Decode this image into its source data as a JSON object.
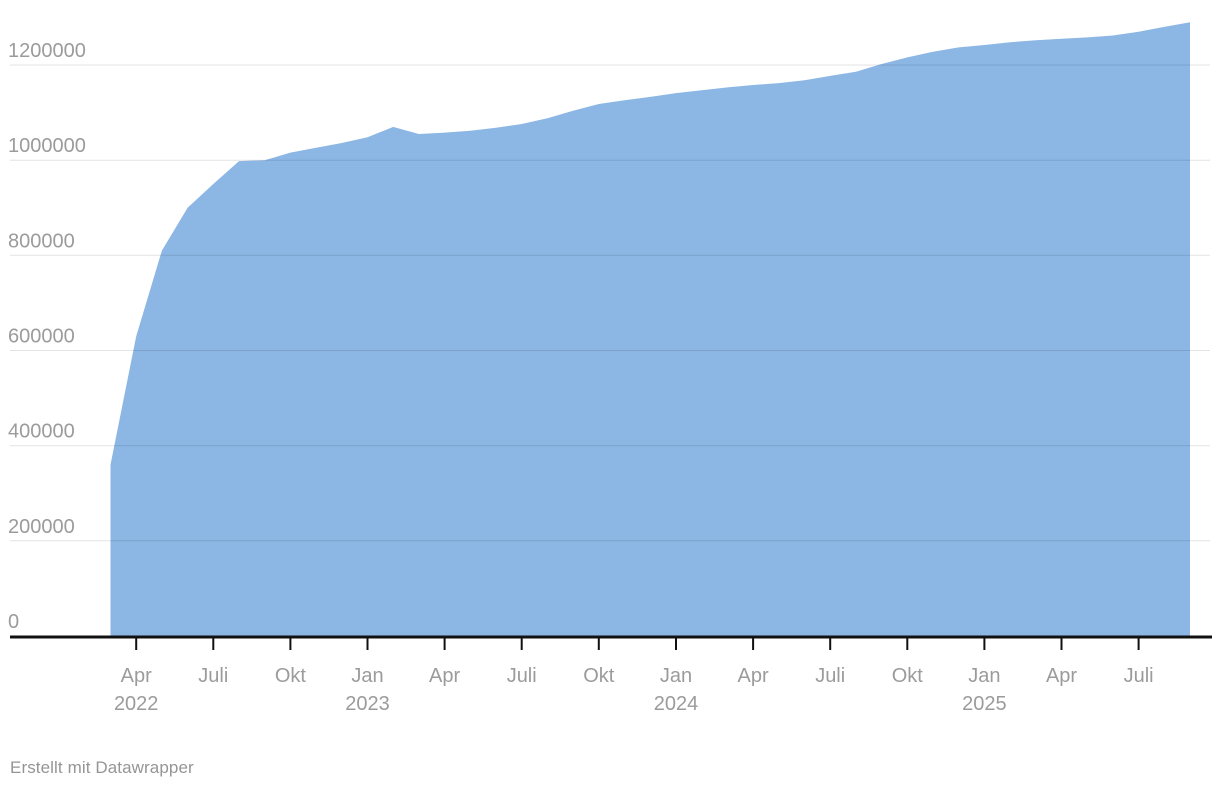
{
  "chart_data": {
    "type": "area",
    "title": "",
    "xlabel": "",
    "ylabel": "",
    "legend": "none",
    "grid": true,
    "ylim": [
      0,
      1290000
    ],
    "x": [
      "2022-03",
      "2022-04",
      "2022-05",
      "2022-06",
      "2022-07",
      "2022-08",
      "2022-09",
      "2022-10",
      "2022-11",
      "2022-12",
      "2023-01",
      "2023-02",
      "2023-03",
      "2023-04",
      "2023-05",
      "2023-06",
      "2023-07",
      "2023-08",
      "2023-09",
      "2023-10",
      "2023-11",
      "2023-12",
      "2024-01",
      "2024-02",
      "2024-03",
      "2024-04",
      "2024-05",
      "2024-06",
      "2024-07",
      "2024-08",
      "2024-09",
      "2024-10",
      "2024-11",
      "2024-12",
      "2025-01",
      "2025-02",
      "2025-03",
      "2025-04",
      "2025-05",
      "2025-06",
      "2025-07",
      "2025-08",
      "2025-09"
    ],
    "values": [
      360000,
      630000,
      810000,
      900000,
      950000,
      998000,
      1000000,
      1016000,
      1026000,
      1036000,
      1048000,
      1070000,
      1055000,
      1058000,
      1062000,
      1068000,
      1076000,
      1088000,
      1104000,
      1118000,
      1126000,
      1133000,
      1141000,
      1147000,
      1153000,
      1158000,
      1162000,
      1168000,
      1177000,
      1186000,
      1202000,
      1216000,
      1228000,
      1237000,
      1242000,
      1248000,
      1252000,
      1255000,
      1258000,
      1262000,
      1270000,
      1280000,
      1290000
    ],
    "y_ticks": [
      {
        "value": 0,
        "label": "0"
      },
      {
        "value": 200000,
        "label": "200000"
      },
      {
        "value": 400000,
        "label": "400000"
      },
      {
        "value": 600000,
        "label": "600000"
      },
      {
        "value": 800000,
        "label": "800000"
      },
      {
        "value": 1000000,
        "label": "1000000"
      },
      {
        "value": 1200000,
        "label": "1200000"
      }
    ],
    "x_ticks": [
      {
        "index": 1,
        "label": "Apr",
        "year": "2022"
      },
      {
        "index": 4,
        "label": "Juli"
      },
      {
        "index": 7,
        "label": "Okt"
      },
      {
        "index": 10,
        "label": "Jan",
        "year": "2023"
      },
      {
        "index": 13,
        "label": "Apr"
      },
      {
        "index": 16,
        "label": "Juli"
      },
      {
        "index": 19,
        "label": "Okt"
      },
      {
        "index": 22,
        "label": "Jan",
        "year": "2024"
      },
      {
        "index": 25,
        "label": "Apr"
      },
      {
        "index": 28,
        "label": "Juli"
      },
      {
        "index": 31,
        "label": "Okt"
      },
      {
        "index": 34,
        "label": "Jan",
        "year": "2025"
      },
      {
        "index": 37,
        "label": "Apr"
      },
      {
        "index": 40,
        "label": "Juli"
      }
    ]
  },
  "colors": {
    "area": "#8cb7e5",
    "axis": "#111111",
    "grid": "rgba(0,0,0,0.11)",
    "tick_label": "#9b9b9b",
    "footer_text": "#959595",
    "background": "#ffffff"
  },
  "footer": {
    "text": "Erstellt mit Datawrapper"
  }
}
